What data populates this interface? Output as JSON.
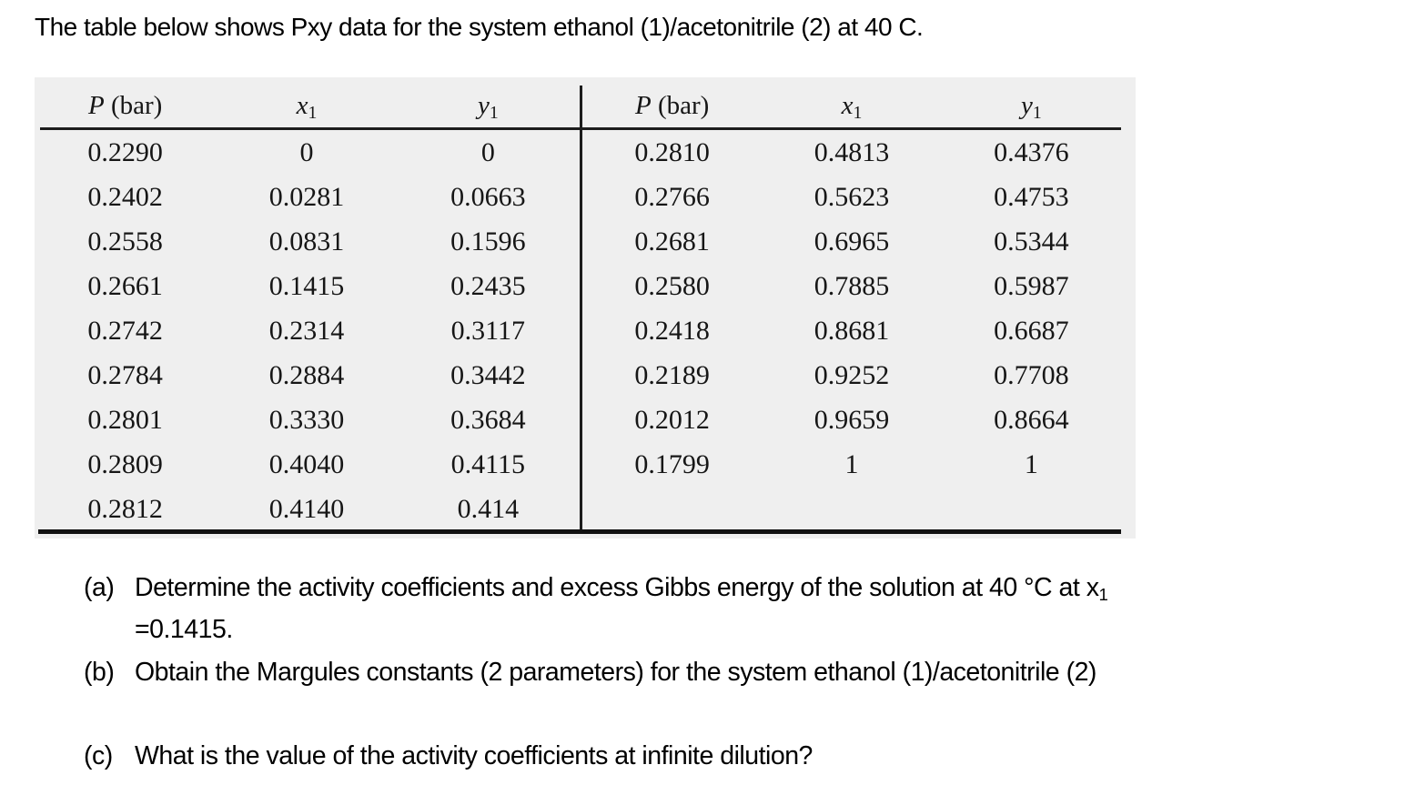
{
  "title": "The table below shows Pxy data for the system ethanol (1)/acetonitrile (2) at 40 C.",
  "table": {
    "headers": {
      "pressure_symbol": "P",
      "pressure_unit": "(bar)",
      "x_symbol": "x",
      "x_subscript": "1",
      "y_symbol": "y",
      "y_subscript": "1"
    },
    "left_rows": [
      [
        "0.2290",
        "0",
        "0"
      ],
      [
        "0.2402",
        "0.0281",
        "0.0663"
      ],
      [
        "0.2558",
        "0.0831",
        "0.1596"
      ],
      [
        "0.2661",
        "0.1415",
        "0.2435"
      ],
      [
        "0.2742",
        "0.2314",
        "0.3117"
      ],
      [
        "0.2784",
        "0.2884",
        "0.3442"
      ],
      [
        "0.2801",
        "0.3330",
        "0.3684"
      ],
      [
        "0.2809",
        "0.4040",
        "0.4115"
      ],
      [
        "0.2812",
        "0.4140",
        "0.414"
      ]
    ],
    "right_rows": [
      [
        "0.2810",
        "0.4813",
        "0.4376"
      ],
      [
        "0.2766",
        "0.5623",
        "0.4753"
      ],
      [
        "0.2681",
        "0.6965",
        "0.5344"
      ],
      [
        "0.2580",
        "0.7885",
        "0.5987"
      ],
      [
        "0.2418",
        "0.8681",
        "0.6687"
      ],
      [
        "0.2189",
        "0.9252",
        "0.7708"
      ],
      [
        "0.2012",
        "0.9659",
        "0.8664"
      ],
      [
        "0.1799",
        "1",
        "1"
      ]
    ]
  },
  "questions": {
    "a": {
      "label": "(a)",
      "text": "Determine the activity coefficients and excess Gibbs energy of the solution at 40 °C at x",
      "text_subscript": "1",
      "continuation": "=0.1415."
    },
    "b": {
      "label": "(b)",
      "text": "Obtain the Margules constants (2 parameters) for the system ethanol (1)/acetonitrile (2)"
    },
    "c": {
      "label": "(c)",
      "text": "What is the value of the activity coefficients at infinite dilution?"
    }
  },
  "colors": {
    "table_background": "#efefef",
    "rule": "#1c1c1c",
    "text": "#000000"
  }
}
